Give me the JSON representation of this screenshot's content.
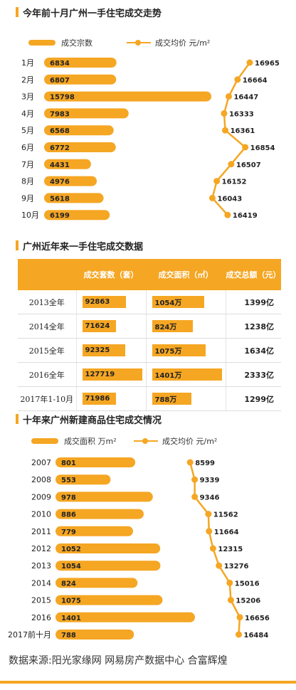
{
  "section1": {
    "title": "今年前十月广州一手住宅成交走势",
    "legend_bar": "成交宗数",
    "legend_line": "成交均价 元/m²"
  },
  "section2": {
    "title": "广州近年来一手住宅成交数据"
  },
  "section3": {
    "title": "十年来广州新建商品住宅成交情况",
    "legend_bar": "成交面积 万m²",
    "legend_line": "成交均价 元/m²"
  },
  "table": {
    "headers": [
      "",
      "成交套数（套）",
      "成交面积（㎡）",
      "成交总额（元）"
    ],
    "rows": [
      {
        "year": "2013全年",
        "units": "92863",
        "area": "1054万",
        "total": "1399亿"
      },
      {
        "year": "2014全年",
        "units": "71624",
        "area": "824万",
        "total": "1238亿"
      },
      {
        "year": "2015全年",
        "units": "92325",
        "area": "1075万",
        "total": "1634亿"
      },
      {
        "year": "2016全年",
        "units": "127719",
        "area": "1401万",
        "total": "2333亿"
      },
      {
        "year": "2017年1-10月",
        "units": "71986",
        "area": "788万",
        "total": "1299亿"
      }
    ]
  },
  "footer": "数据来源:阳光家缘网  网易房产数据中心  合富辉煌",
  "colors": {
    "accent": "#f5a623"
  },
  "chart_data": [
    {
      "type": "bar",
      "title": "今年前十月广州一手住宅成交走势",
      "categories": [
        "1月",
        "2月",
        "3月",
        "4月",
        "5月",
        "6月",
        "7月",
        "8月",
        "9月",
        "10月"
      ],
      "series": [
        {
          "name": "成交宗数",
          "type": "bar",
          "values": [
            6834,
            6807,
            15798,
            7983,
            6568,
            6772,
            4431,
            4976,
            5618,
            6199
          ]
        },
        {
          "name": "成交均价 元/m²",
          "type": "line",
          "values": [
            16965,
            16664,
            16447,
            16333,
            16361,
            16854,
            16507,
            16152,
            16043,
            16419
          ]
        }
      ]
    },
    {
      "type": "table",
      "title": "广州近年来一手住宅成交数据",
      "categories": [
        "2013全年",
        "2014全年",
        "2015全年",
        "2016全年",
        "2017年1-10月"
      ],
      "series": [
        {
          "name": "成交套数（套）",
          "values": [
            92863,
            71624,
            92325,
            127719,
            71986
          ]
        },
        {
          "name": "成交面积（㎡）",
          "values": [
            1054,
            824,
            1075,
            1401,
            788
          ]
        },
        {
          "name": "成交总额（元）",
          "values": [
            1399,
            1238,
            1634,
            2333,
            1299
          ]
        }
      ]
    },
    {
      "type": "bar",
      "title": "十年来广州新建商品住宅成交情况",
      "categories": [
        "2007",
        "2008",
        "2009",
        "2010",
        "2011",
        "2012",
        "2013",
        "2014",
        "2015",
        "2016",
        "2017前十月"
      ],
      "series": [
        {
          "name": "成交面积 万m²",
          "type": "bar",
          "values": [
            801,
            553,
            978,
            886,
            779,
            1052,
            1054,
            824,
            1075,
            1401,
            788
          ]
        },
        {
          "name": "成交均价 元/m²",
          "type": "line",
          "values": [
            8599,
            9339,
            9346,
            11562,
            11664,
            12315,
            13276,
            15016,
            15206,
            16656,
            16484
          ]
        }
      ]
    }
  ]
}
